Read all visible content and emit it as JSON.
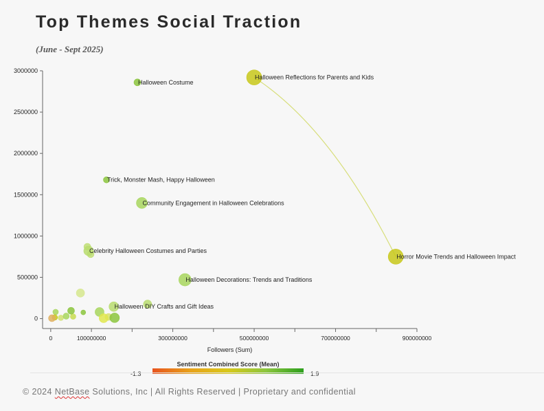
{
  "page": {
    "title": "Top Themes Social Traction",
    "subtitle": "(June - Sept 2025)",
    "footer_prefix": "© 2024 ",
    "footer_brand": "NetBase",
    "footer_suffix": " Solutions, Inc | All Rights Reserved | Proprietary and confidential"
  },
  "legend": {
    "title": "Sentiment Combined Score (Mean)",
    "min_label": "-1.3",
    "max_label": "1.9",
    "colors": [
      "#e8541e",
      "#e8a21a",
      "#d8c81a",
      "#8cc63e",
      "#2ea01e"
    ]
  },
  "chart_data": {
    "type": "scatter",
    "xlabel": "Followers (Sum)",
    "ylabel": "",
    "xlim": [
      -20000000,
      900000000
    ],
    "ylim": [
      -120000,
      3000000
    ],
    "x_ticks": [
      0,
      100000000,
      300000000,
      500000000,
      700000000,
      900000000
    ],
    "x_tick_labels": [
      "0",
      "100000000",
      "300000000",
      "500000000",
      "700000000",
      "900000000"
    ],
    "y_ticks": [
      0,
      500000,
      1000000,
      1500000,
      2000000,
      2500000,
      3000000
    ],
    "y_tick_labels": [
      "0",
      "500000",
      "1000000",
      "1500000",
      "2000000",
      "2500000",
      "3000000"
    ],
    "grid": false,
    "points": [
      {
        "label": "Halloween Reflections for Parents and Kids",
        "x": 500000000,
        "y": 2920000,
        "size": 11,
        "color": "#c8c81a"
      },
      {
        "label": "Halloween Costume",
        "x": 213000000,
        "y": 2860000,
        "size": 5,
        "color": "#8cc63e"
      },
      {
        "label": "Trick, Monster Mash, Happy Halloween",
        "x": 137000000,
        "y": 1680000,
        "size": 4.5,
        "color": "#8cc63e"
      },
      {
        "label": "Community Engagement in Halloween Celebrations",
        "x": 224000000,
        "y": 1400000,
        "size": 8,
        "color": "#a8d65e"
      },
      {
        "label": "Celebrity Halloween Costumes and Parties",
        "x": 93000000,
        "y": 820000,
        "size": 7,
        "color": "#b8dc6e"
      },
      {
        "label": "Horror Movie Trends and Halloween Impact",
        "x": 848000000,
        "y": 750000,
        "size": 11,
        "color": "#c8c81a"
      },
      {
        "label": "Halloween Decorations: Trends and Traditions",
        "x": 330000000,
        "y": 470000,
        "size": 9,
        "color": "#a8d65e"
      },
      {
        "label": "Halloween DIY Crafts and Gift Ideas",
        "x": 155000000,
        "y": 145000,
        "size": 7,
        "color": "#b8dc6e"
      },
      {
        "label": "",
        "x": 238000000,
        "y": 175000,
        "size": 6,
        "color": "#b8dc6e"
      },
      {
        "label": "",
        "x": 90000000,
        "y": 870000,
        "size": 5,
        "color": "#c0de76"
      },
      {
        "label": "",
        "x": 98000000,
        "y": 780000,
        "size": 5,
        "color": "#c0de76"
      },
      {
        "label": "",
        "x": 73000000,
        "y": 310000,
        "size": 6,
        "color": "#d6e88e"
      },
      {
        "label": "",
        "x": 120000000,
        "y": 80000,
        "size": 6.5,
        "color": "#a8d65e"
      },
      {
        "label": "",
        "x": 157000000,
        "y": 10000,
        "size": 7,
        "color": "#8cc63e"
      },
      {
        "label": "",
        "x": 130000000,
        "y": 5000,
        "size": 6.5,
        "color": "#e0e84e"
      },
      {
        "label": "",
        "x": 142000000,
        "y": 20000,
        "size": 5,
        "color": "#d8e070"
      },
      {
        "label": "",
        "x": 50000000,
        "y": 95000,
        "size": 5,
        "color": "#8cc63e"
      },
      {
        "label": "",
        "x": 12000000,
        "y": 80000,
        "size": 4,
        "color": "#a8d65e"
      },
      {
        "label": "",
        "x": 38000000,
        "y": 30000,
        "size": 4.5,
        "color": "#a8d65e"
      },
      {
        "label": "",
        "x": 55000000,
        "y": 25000,
        "size": 4,
        "color": "#c8dc50"
      },
      {
        "label": "",
        "x": 80000000,
        "y": 75000,
        "size": 3.5,
        "color": "#8cc63e"
      },
      {
        "label": "",
        "x": 3000000,
        "y": 5000,
        "size": 5,
        "color": "#e0b060"
      },
      {
        "label": "",
        "x": 10000000,
        "y": 15000,
        "size": 4,
        "color": "#c8c81a"
      },
      {
        "label": "",
        "x": 25000000,
        "y": 10000,
        "size": 4,
        "color": "#d0e070"
      }
    ],
    "connector": {
      "from": 0,
      "to": 5,
      "color": "#d7de7a"
    }
  }
}
